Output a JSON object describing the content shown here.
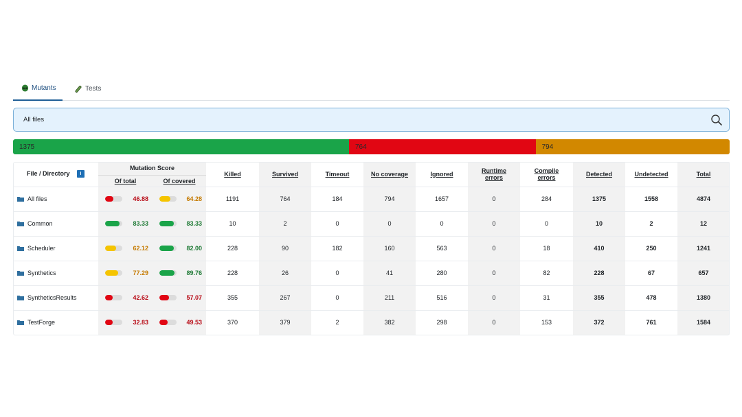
{
  "tabs": [
    {
      "label": "Mutants",
      "icon": "alien-icon",
      "active": true
    },
    {
      "label": "Tests",
      "icon": "test-tube-icon",
      "active": false
    }
  ],
  "search": {
    "value": "All files",
    "icon": "search-icon"
  },
  "summary_bar": {
    "detected": {
      "label": "1375",
      "value": 1375,
      "color": "#1aa449"
    },
    "undetected": {
      "label": "764",
      "value": 764,
      "color": "#e10613"
    },
    "no_coverage": {
      "label": "794",
      "value": 794,
      "color": "#d28800"
    }
  },
  "table": {
    "headers": {
      "file": "File / Directory",
      "info": "i",
      "mutation_score": "Mutation Score",
      "of_total": "Of total",
      "of_covered": "Of covered",
      "killed": "Killed",
      "survived": "Survived",
      "timeout": "Timeout",
      "no_coverage": "No coverage",
      "ignored": "Ignored",
      "runtime_1": "Runtime",
      "runtime_2": "errors",
      "compile_1": "Compile",
      "compile_2": "errors",
      "detected": "Detected",
      "undetected": "Undetected",
      "total": "Total"
    },
    "rows": [
      {
        "name": "All files",
        "of_total": "46.88",
        "of_total_level": 0.4688,
        "of_total_status": "red",
        "of_covered": "64.28",
        "of_covered_level": 0.6428,
        "of_covered_status": "orange",
        "killed": "1191",
        "survived": "764",
        "timeout": "184",
        "no_coverage": "794",
        "ignored": "1657",
        "runtime": "0",
        "compile": "284",
        "detected": "1375",
        "undetected": "1558",
        "total": "4874"
      },
      {
        "name": "Common",
        "of_total": "83.33",
        "of_total_level": 0.8333,
        "of_total_status": "green",
        "of_covered": "83.33",
        "of_covered_level": 0.8333,
        "of_covered_status": "green",
        "killed": "10",
        "survived": "2",
        "timeout": "0",
        "no_coverage": "0",
        "ignored": "0",
        "runtime": "0",
        "compile": "0",
        "detected": "10",
        "undetected": "2",
        "total": "12"
      },
      {
        "name": "Scheduler",
        "of_total": "62.12",
        "of_total_level": 0.6212,
        "of_total_status": "orange",
        "of_covered": "82.00",
        "of_covered_level": 0.82,
        "of_covered_status": "green",
        "killed": "228",
        "survived": "90",
        "timeout": "182",
        "no_coverage": "160",
        "ignored": "563",
        "runtime": "0",
        "compile": "18",
        "detected": "410",
        "undetected": "250",
        "total": "1241"
      },
      {
        "name": "Synthetics",
        "of_total": "77.29",
        "of_total_level": 0.7729,
        "of_total_status": "orange",
        "of_covered": "89.76",
        "of_covered_level": 0.8976,
        "of_covered_status": "green",
        "killed": "228",
        "survived": "26",
        "timeout": "0",
        "no_coverage": "41",
        "ignored": "280",
        "runtime": "0",
        "compile": "82",
        "detected": "228",
        "undetected": "67",
        "total": "657"
      },
      {
        "name": "SyntheticsResults",
        "of_total": "42.62",
        "of_total_level": 0.4262,
        "of_total_status": "red",
        "of_covered": "57.07",
        "of_covered_level": 0.5707,
        "of_covered_status": "red",
        "killed": "355",
        "survived": "267",
        "timeout": "0",
        "no_coverage": "211",
        "ignored": "516",
        "runtime": "0",
        "compile": "31",
        "detected": "355",
        "undetected": "478",
        "total": "1380"
      },
      {
        "name": "TestForge",
        "of_total": "32.83",
        "of_total_level": 0.3283,
        "of_total_status": "red",
        "of_covered": "49.53",
        "of_covered_level": 0.4953,
        "of_covered_status": "red",
        "killed": "370",
        "survived": "379",
        "timeout": "2",
        "no_coverage": "382",
        "ignored": "298",
        "runtime": "0",
        "compile": "153",
        "detected": "372",
        "undetected": "761",
        "total": "1584"
      }
    ]
  },
  "colors": {
    "red": "#e10613",
    "orange": "#f5c400",
    "green": "#1aa449",
    "folder": "#2f6f9f",
    "accent": "#1f5e96"
  }
}
